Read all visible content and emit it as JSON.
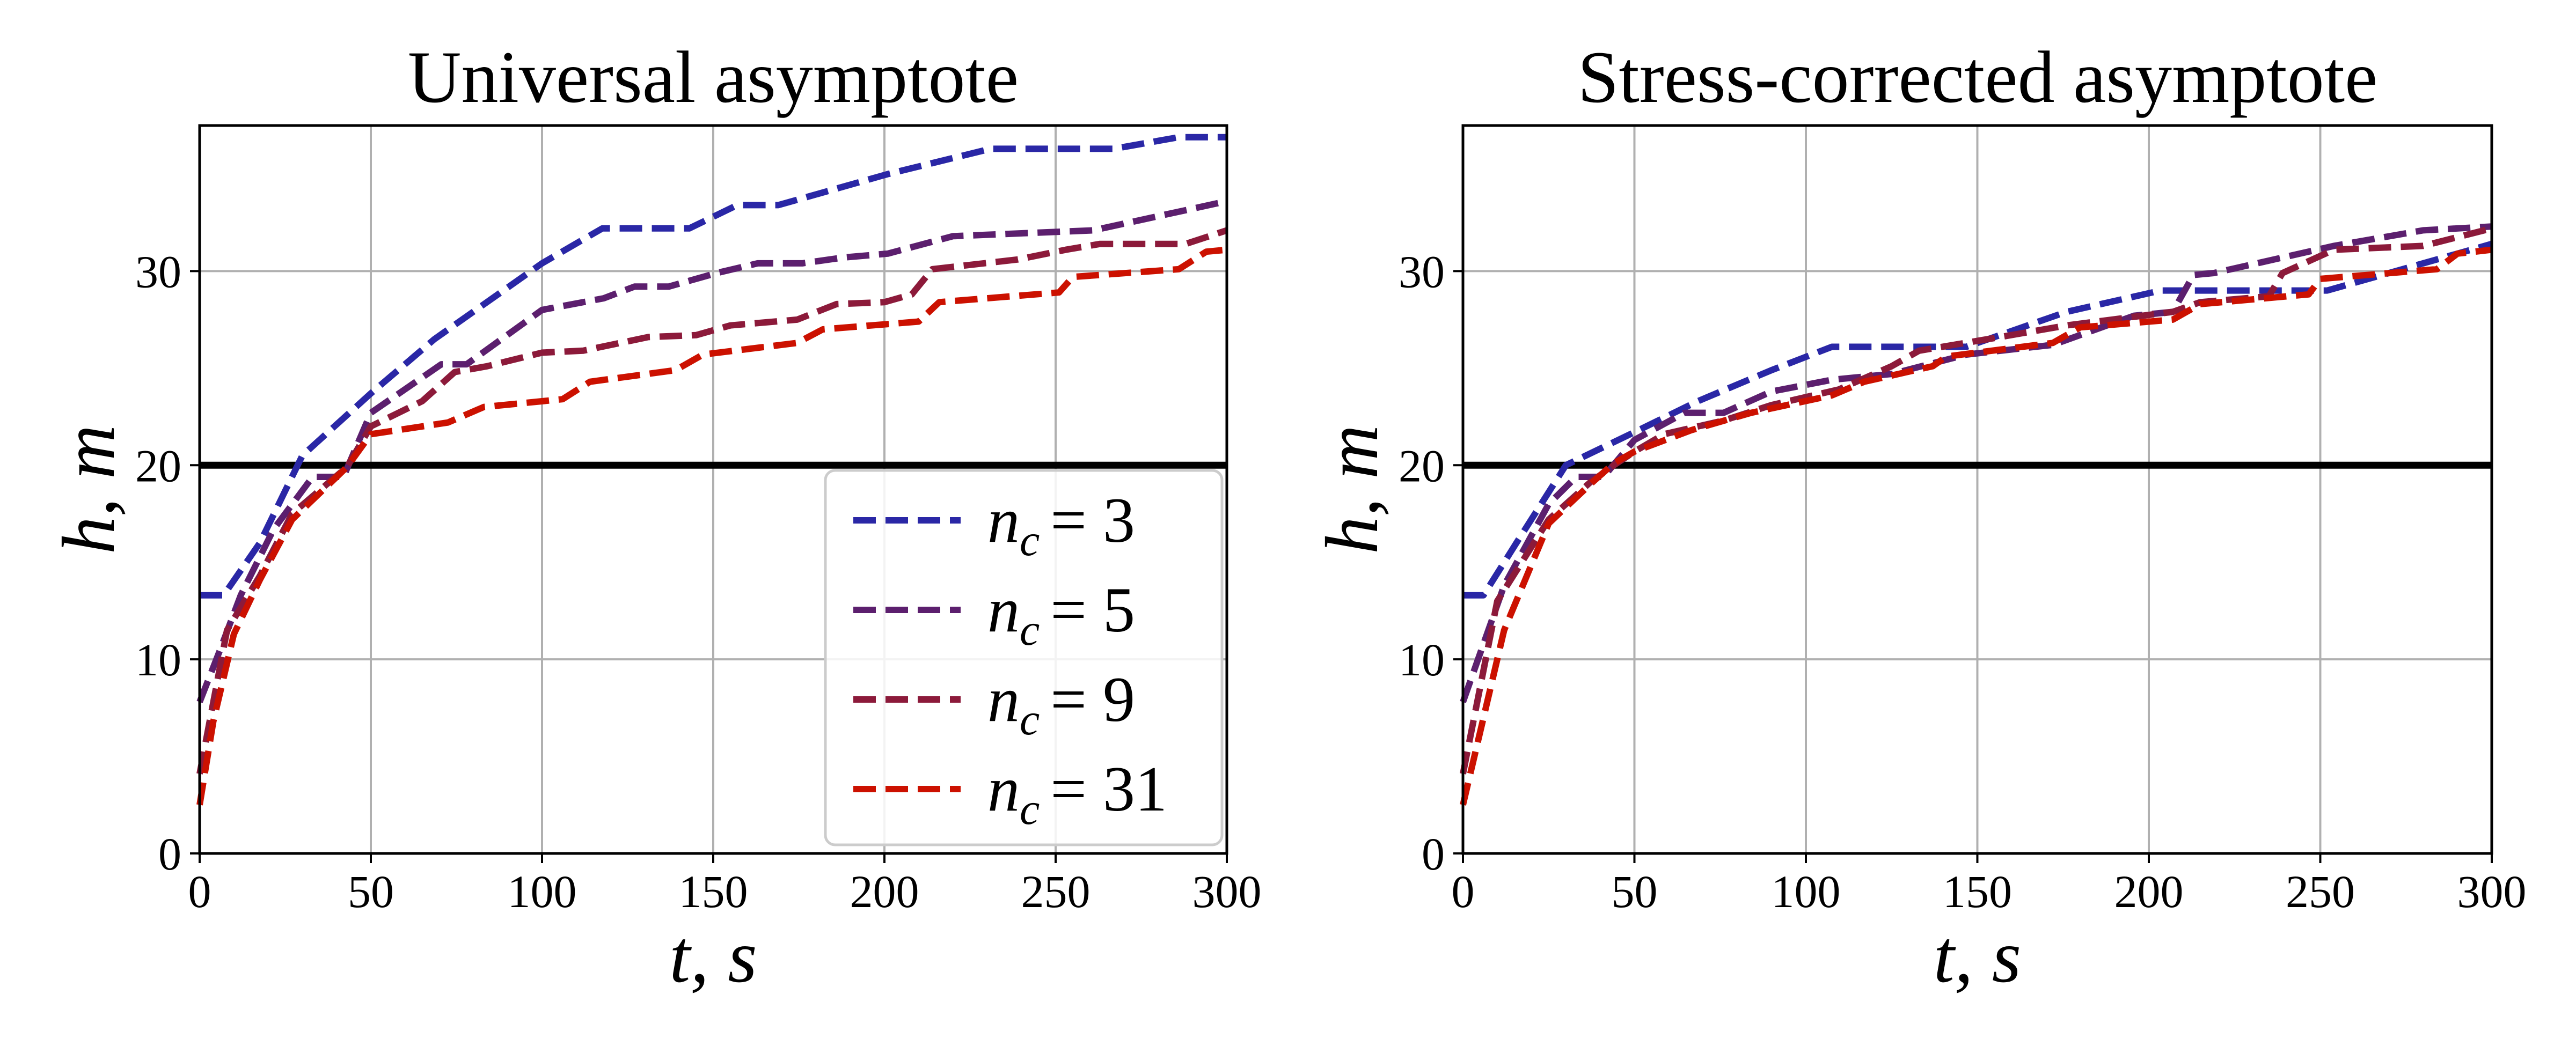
{
  "chart_data": [
    {
      "type": "line",
      "title": "Universal asymptote",
      "xlabel": "t, s",
      "ylabel": "h, m",
      "xlim": [
        0,
        300
      ],
      "ylim": [
        0,
        37.5
      ],
      "xticks": [
        "0",
        "50",
        "100",
        "150",
        "200",
        "250",
        "300"
      ],
      "yticks": [
        "0",
        "10",
        "20",
        "30"
      ],
      "grid": true,
      "legend": "lower-right",
      "reference_line": {
        "y": 20,
        "color": "#000000"
      },
      "series": [
        {
          "name": "n_c = 3",
          "label_var": "n",
          "label_sub": "c",
          "label_val": "= 3",
          "color": "#2a27a6",
          "points": [
            [
              0,
              13.3
            ],
            [
              7,
              13.3
            ],
            [
              17.6,
              16
            ],
            [
              30,
              20.5
            ],
            [
              50,
              23.7
            ],
            [
              68.6,
              26.5
            ],
            [
              100,
              30.4
            ],
            [
              117.6,
              32.2
            ],
            [
              143,
              32.2
            ],
            [
              157,
              33.4
            ],
            [
              169,
              33.4
            ],
            [
              201,
              35
            ],
            [
              231,
              36.3
            ],
            [
              267,
              36.3
            ],
            [
              286,
              36.9
            ],
            [
              300,
              36.9
            ]
          ]
        },
        {
          "name": "n_c = 5",
          "label_var": "n",
          "label_sub": "c",
          "label_val": "= 5",
          "color": "#5c1f6e",
          "points": [
            [
              0,
              7.8
            ],
            [
              6,
              10.5
            ],
            [
              12,
              13.3
            ],
            [
              21.6,
              16.7
            ],
            [
              33,
              19.4
            ],
            [
              42,
              19.4
            ],
            [
              50,
              22.7
            ],
            [
              70.6,
              25.2
            ],
            [
              78,
              25.2
            ],
            [
              100,
              28
            ],
            [
              118,
              28.6
            ],
            [
              127,
              29.2
            ],
            [
              137,
              29.2
            ],
            [
              151,
              29.9
            ],
            [
              163,
              30.4
            ],
            [
              176,
              30.4
            ],
            [
              188,
              30.7
            ],
            [
              201,
              30.9
            ],
            [
              220,
              31.8
            ],
            [
              261,
              32.1
            ],
            [
              300,
              33.6
            ]
          ]
        },
        {
          "name": "n_c = 9",
          "label_var": "n",
          "label_sub": "c",
          "label_val": "= 9",
          "color": "#8c1a3a",
          "points": [
            [
              0,
              4.1
            ],
            [
              8,
              11.5
            ],
            [
              17.6,
              14.3
            ],
            [
              27,
              17.5
            ],
            [
              43,
              19.9
            ],
            [
              50,
              22
            ],
            [
              65,
              23.3
            ],
            [
              74.5,
              24.8
            ],
            [
              84,
              25.1
            ],
            [
              100,
              25.8
            ],
            [
              112,
              25.9
            ],
            [
              131,
              26.6
            ],
            [
              145,
              26.7
            ],
            [
              155,
              27.2
            ],
            [
              174.5,
              27.5
            ],
            [
              186,
              28.3
            ],
            [
              200,
              28.4
            ],
            [
              208,
              28.8
            ],
            [
              214,
              30.1
            ],
            [
              239,
              30.6
            ],
            [
              253,
              31.1
            ],
            [
              263,
              31.4
            ],
            [
              288,
              31.4
            ],
            [
              300,
              32.1
            ]
          ]
        },
        {
          "name": "n_c = 31",
          "label_var": "n",
          "label_sub": "c",
          "label_val": "= 31",
          "color": "#cc1100",
          "points": [
            [
              0,
              2.5
            ],
            [
              4,
              6.8
            ],
            [
              10,
              11.3
            ],
            [
              17.6,
              14.1
            ],
            [
              27,
              17.2
            ],
            [
              43,
              19.9
            ],
            [
              50,
              21.6
            ],
            [
              72.5,
              22.2
            ],
            [
              83,
              23
            ],
            [
              106,
              23.4
            ],
            [
              114,
              24.3
            ],
            [
              139,
              24.9
            ],
            [
              147,
              25.7
            ],
            [
              174.5,
              26.3
            ],
            [
              182,
              27
            ],
            [
              210,
              27.4
            ],
            [
              216,
              28.4
            ],
            [
              251,
              28.9
            ],
            [
              255,
              29.7
            ],
            [
              286,
              30.1
            ],
            [
              294,
              31
            ],
            [
              300,
              31.1
            ]
          ]
        }
      ]
    },
    {
      "type": "line",
      "title": "Stress-corrected asymptote",
      "xlabel": "t, s",
      "ylabel": "h, m",
      "xlim": [
        0,
        300
      ],
      "ylim": [
        0,
        37.5
      ],
      "xticks": [
        "0",
        "50",
        "100",
        "150",
        "200",
        "250",
        "300"
      ],
      "yticks": [
        "0",
        "10",
        "20",
        "30"
      ],
      "grid": true,
      "reference_line": {
        "y": 20,
        "color": "#000000"
      },
      "series": [
        {
          "color": "#2a27a6",
          "points": [
            [
              0,
              13.3
            ],
            [
              6,
              13.3
            ],
            [
              15.6,
              16
            ],
            [
              30,
              20
            ],
            [
              50,
              21.7
            ],
            [
              68.5,
              23.3
            ],
            [
              90,
              24.9
            ],
            [
              107.6,
              26.1
            ],
            [
              146.8,
              26.1
            ],
            [
              176,
              27.9
            ],
            [
              203.5,
              29
            ],
            [
              252,
              29
            ],
            [
              300,
              31.4
            ]
          ]
        },
        {
          "color": "#5c1f6e",
          "points": [
            [
              0,
              7.8
            ],
            [
              12,
              13.8
            ],
            [
              25,
              18
            ],
            [
              33,
              19.4
            ],
            [
              41,
              19.4
            ],
            [
              50,
              21.3
            ],
            [
              64.6,
              22.7
            ],
            [
              76,
              22.7
            ],
            [
              90,
              23.8
            ],
            [
              107.6,
              24.4
            ],
            [
              125,
              24.7
            ],
            [
              146.8,
              25.7
            ],
            [
              172,
              26.2
            ],
            [
              195.7,
              27.7
            ],
            [
              207,
              27.9
            ],
            [
              213,
              29.8
            ],
            [
              219,
              29.9
            ],
            [
              254,
              31.3
            ],
            [
              280,
              32.1
            ],
            [
              300,
              32.3
            ]
          ]
        },
        {
          "color": "#8c1a3a",
          "points": [
            [
              0,
              4.1
            ],
            [
              10,
              13
            ],
            [
              25,
              17.2
            ],
            [
              37,
              19.1
            ],
            [
              44,
              20
            ],
            [
              50,
              20.7
            ],
            [
              58.7,
              21.6
            ],
            [
              76,
              22.3
            ],
            [
              90,
              23.1
            ],
            [
              109.6,
              23.9
            ],
            [
              125,
              25.1
            ],
            [
              133,
              25.9
            ],
            [
              156.6,
              26.6
            ],
            [
              176,
              27.2
            ],
            [
              207,
              27.9
            ],
            [
              215,
              28.4
            ],
            [
              235,
              28.7
            ],
            [
              239,
              29.9
            ],
            [
              254,
              31.1
            ],
            [
              280,
              31.3
            ],
            [
              300,
              32.2
            ]
          ]
        },
        {
          "color": "#cc1100",
          "points": [
            [
              0,
              2.5
            ],
            [
              12,
              11.5
            ],
            [
              25,
              17
            ],
            [
              37,
              19
            ],
            [
              44,
              20.1
            ],
            [
              50,
              20.7
            ],
            [
              66.5,
              21.8
            ],
            [
              84,
              22.7
            ],
            [
              107.6,
              23.6
            ],
            [
              117,
              24.3
            ],
            [
              137,
              25.1
            ],
            [
              141,
              25.6
            ],
            [
              172,
              26.3
            ],
            [
              180,
              27.1
            ],
            [
              207,
              27.5
            ],
            [
              215,
              28.3
            ],
            [
              246.6,
              28.8
            ],
            [
              250,
              29.6
            ],
            [
              284,
              30.1
            ],
            [
              290,
              30.9
            ],
            [
              300,
              31.1
            ]
          ]
        }
      ]
    }
  ]
}
